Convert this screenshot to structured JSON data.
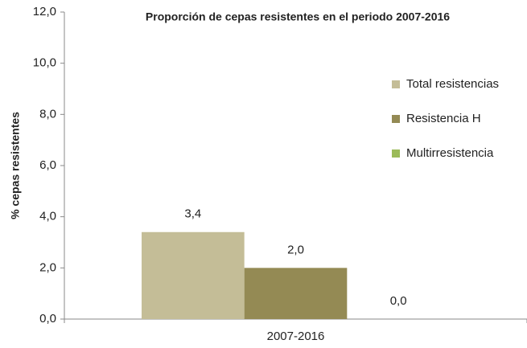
{
  "chart_data": {
    "type": "bar",
    "title": "Proporción de cepas resistentes en el periodo 2007-2016",
    "y_label": "% cepas resistentes",
    "categories": [
      "2007-2016"
    ],
    "series": [
      {
        "name": "Total resistencias",
        "color": "#c4bd97",
        "values": [
          3.4
        ],
        "value_labels": [
          "3,4"
        ]
      },
      {
        "name": "Resistencia H",
        "color": "#948a54",
        "values": [
          2.0
        ],
        "value_labels": [
          "2,0"
        ]
      },
      {
        "name": "Multirresistencia",
        "color": "#9bbb59",
        "values": [
          0.0
        ],
        "value_labels": [
          "0,0"
        ]
      }
    ],
    "ylim": [
      0,
      12
    ],
    "yticks": [
      {
        "value": 0,
        "label": "0,0"
      },
      {
        "value": 2,
        "label": "2,0"
      },
      {
        "value": 4,
        "label": "4,0"
      },
      {
        "value": 6,
        "label": "6,0"
      },
      {
        "value": 8,
        "label": "8,0"
      },
      {
        "value": 10,
        "label": "10,0"
      },
      {
        "value": 12,
        "label": "12,0"
      }
    ],
    "legend": "right"
  }
}
